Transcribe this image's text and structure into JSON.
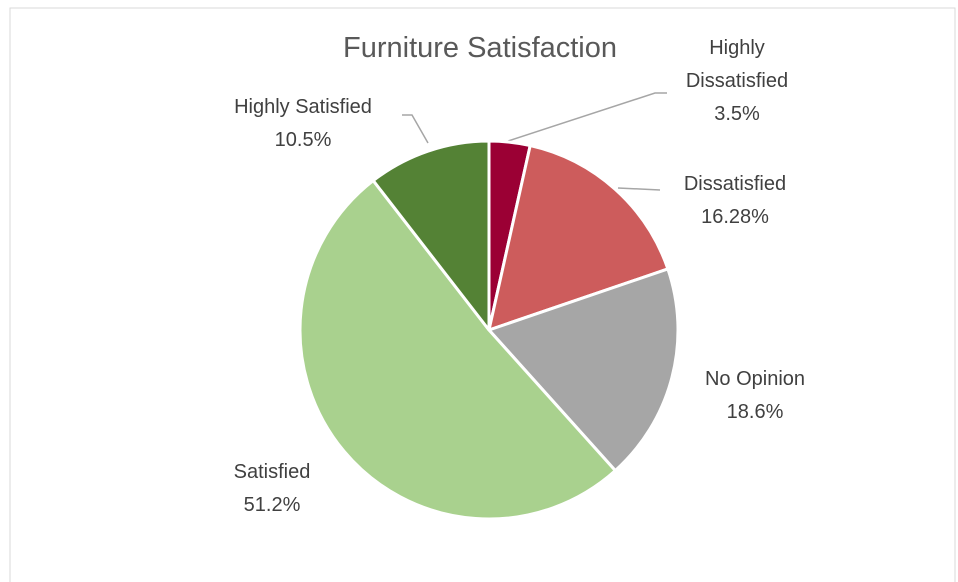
{
  "chart_data": {
    "type": "pie",
    "title": "Furniture Satisfaction",
    "categories": [
      "Highly Dissatisfied",
      "Dissatisfied",
      "No Opinion",
      "Satisfied",
      "Highly Satisfied"
    ],
    "values": [
      3.5,
      16.28,
      18.6,
      51.2,
      10.5
    ],
    "value_labels": [
      "3.5%",
      "16.28%",
      "18.6%",
      "51.2%",
      "10.5%"
    ],
    "colors": [
      "#9b0034",
      "#cd5c5c",
      "#a6a6a6",
      "#a9d18e",
      "#548235"
    ]
  }
}
